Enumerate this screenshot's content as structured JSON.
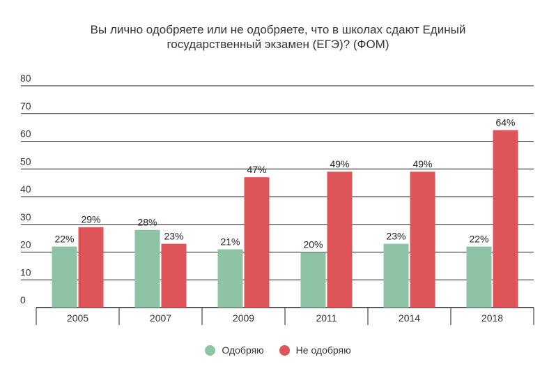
{
  "chart_data": {
    "type": "bar",
    "title_lines": [
      "Вы лично одобряете или не одобряете, что в школах сдают Единый",
      "государственный экзамен (ЕГЭ)? (ФОМ)"
    ],
    "categories": [
      "2005",
      "2007",
      "2009",
      "2011",
      "2014",
      "2018"
    ],
    "series": [
      {
        "name": "Одобряю",
        "color": "#8ec4a5",
        "values": [
          22,
          28,
          21,
          20,
          23,
          22
        ],
        "labels": [
          "22%",
          "28%",
          "21%",
          "20%",
          "23%",
          "22%"
        ]
      },
      {
        "name": "Не одобряю",
        "color": "#dd5559",
        "values": [
          29,
          23,
          47,
          49,
          49,
          64
        ],
        "labels": [
          "29%",
          "23%",
          "47%",
          "49%",
          "49%",
          "64%"
        ]
      }
    ],
    "ylim": [
      0,
      80
    ],
    "yticks": [
      "0",
      "10",
      "20",
      "30",
      "40",
      "50",
      "60",
      "70",
      "80"
    ],
    "grid": true,
    "legend_position": "bottom-center"
  }
}
